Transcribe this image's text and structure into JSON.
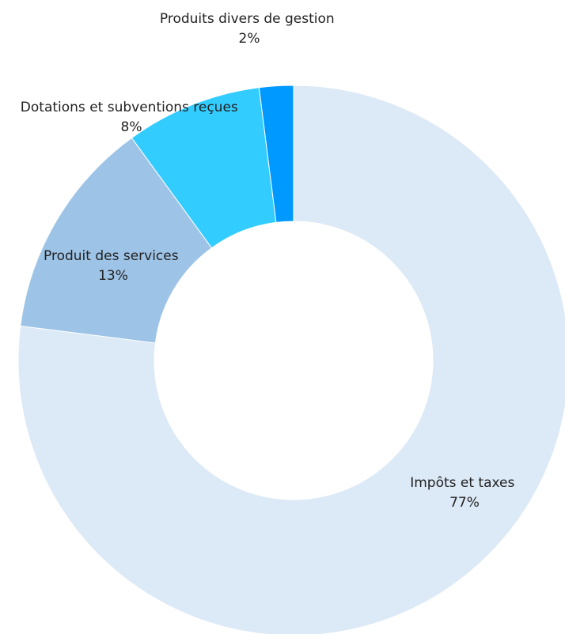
{
  "chart_data": {
    "type": "pie",
    "variant": "donut",
    "title": "",
    "legend": "none",
    "slices": [
      {
        "label": "Impôts et taxes",
        "value": 77,
        "percent_label": "77%",
        "color": "#dce9f6"
      },
      {
        "label": "Produit des services",
        "value": 13,
        "percent_label": "13%",
        "color": "#9dc3e6"
      },
      {
        "label": "Dotations et subventions reçues",
        "value": 8,
        "percent_label": "8%",
        "color": "#33ccff"
      },
      {
        "label": "Produits divers de gestion",
        "value": 2,
        "percent_label": "2%",
        "color": "#0099ff"
      }
    ]
  }
}
